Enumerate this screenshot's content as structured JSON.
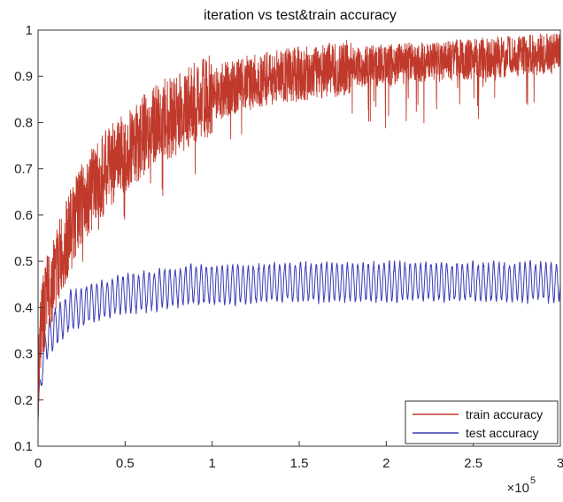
{
  "chart_data": {
    "type": "line",
    "title": "iteration vs test&train accuracy",
    "xlabel": "",
    "ylabel": "",
    "xlim": [
      0,
      300000
    ],
    "ylim": [
      0.1,
      1
    ],
    "x_multiplier_label": "×10",
    "x_multiplier_exponent": "5",
    "x_ticks": [
      0,
      50000,
      100000,
      150000,
      200000,
      250000,
      300000
    ],
    "x_tick_labels": [
      "0",
      "0.5",
      "1",
      "1.5",
      "2",
      "2.5",
      "3"
    ],
    "y_ticks": [
      0.1,
      0.2,
      0.3,
      0.4,
      0.5,
      0.6,
      0.7,
      0.8,
      0.9,
      1
    ],
    "y_tick_labels": [
      "0.1",
      "0.2",
      "0.3",
      "0.4",
      "0.5",
      "0.6",
      "0.7",
      "0.8",
      "0.9",
      "1"
    ],
    "grid": false,
    "legend_position": "bottom-right",
    "series": [
      {
        "name": "train accuracy",
        "color": "#c0392b",
        "x": [
          0,
          2000,
          5000,
          10000,
          15000,
          20000,
          25000,
          30000,
          40000,
          50000,
          60000,
          70000,
          80000,
          90000,
          100000,
          110000,
          120000,
          140000,
          160000,
          180000,
          200000,
          220000,
          240000,
          260000,
          280000,
          300000
        ],
        "values": [
          0.25,
          0.36,
          0.42,
          0.48,
          0.53,
          0.58,
          0.62,
          0.65,
          0.7,
          0.74,
          0.77,
          0.8,
          0.82,
          0.84,
          0.86,
          0.875,
          0.885,
          0.9,
          0.91,
          0.92,
          0.925,
          0.93,
          0.935,
          0.94,
          0.945,
          0.95
        ]
      },
      {
        "name": "test accuracy",
        "color": "#3b3bb5",
        "x": [
          0,
          2000,
          5000,
          10000,
          15000,
          20000,
          30000,
          40000,
          50000,
          60000,
          70000,
          80000,
          90000,
          100000,
          120000,
          140000,
          160000,
          180000,
          200000,
          220000,
          240000,
          260000,
          280000,
          300000
        ],
        "values": [
          0.15,
          0.27,
          0.33,
          0.36,
          0.38,
          0.395,
          0.41,
          0.42,
          0.43,
          0.435,
          0.44,
          0.445,
          0.45,
          0.45,
          0.45,
          0.455,
          0.455,
          0.455,
          0.455,
          0.455,
          0.455,
          0.455,
          0.455,
          0.455
        ]
      }
    ]
  }
}
